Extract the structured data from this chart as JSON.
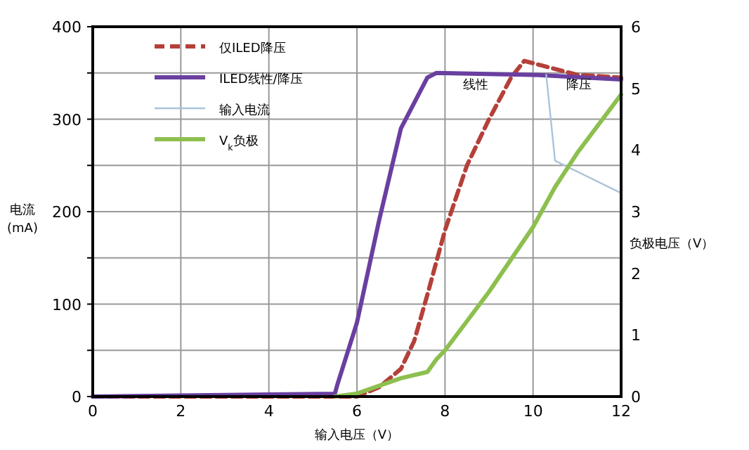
{
  "chart_data": {
    "type": "line",
    "xlabel": "输入电压（V）",
    "ylabel": "电流 (mA)",
    "y2label": "负极电压（V）",
    "xlim": [
      0,
      12
    ],
    "xticks": [
      0,
      2,
      4,
      6,
      8,
      10,
      12
    ],
    "ylim": [
      0,
      400
    ],
    "yticks": [
      0,
      {
        "value": 50,
        "label": null
      },
      100,
      {
        "value": 150,
        "label": null
      },
      200,
      {
        "value": 250,
        "label": null
      },
      300,
      {
        "value": 350,
        "label": null
      },
      400
    ],
    "y2lim": [
      0,
      6
    ],
    "y2ticks": [
      0,
      1,
      2,
      3,
      4,
      5,
      6
    ],
    "grid": true,
    "legend": "top left",
    "marker": "none",
    "annotations": [
      "线性",
      "降压"
    ],
    "series": [
      {
        "name": "仅ILED降压",
        "color": "#b5403a",
        "line_style": "dashed",
        "x": [
          0,
          6,
          6.5,
          7,
          7.3,
          7.6,
          8,
          8.5,
          9,
          9.5,
          9.8,
          10.2,
          11,
          12
        ],
        "values": [
          0,
          0,
          10,
          30,
          60,
          110,
          180,
          250,
          300,
          345,
          363,
          358,
          348,
          345
        ]
      },
      {
        "name": "ILED线性/降压",
        "color": "#6a3fa0",
        "line_style": "solid",
        "x": [
          0,
          5.5,
          5.55,
          6,
          6.5,
          7,
          7.6,
          7.8,
          10,
          12
        ],
        "values": [
          0,
          3,
          12,
          80,
          190,
          290,
          345,
          350,
          348,
          343
        ]
      },
      {
        "name": "输入电流",
        "color": "#a9c4dc",
        "line_style": "solid",
        "x": [
          10.3,
          10.5,
          12
        ],
        "values": [
          348,
          255,
          220
        ]
      },
      {
        "name": "V$_{k}$负极",
        "color": "#8dbf4f",
        "line_style": "solid",
        "axis": "y2",
        "x": [
          5.5,
          6,
          7,
          7.6,
          7.8,
          8,
          9,
          10,
          10.5,
          11,
          12
        ],
        "values": [
          0,
          0.05,
          0.3,
          0.4,
          0.6,
          0.75,
          1.7,
          2.75,
          3.4,
          3.95,
          4.9
        ]
      }
    ]
  }
}
